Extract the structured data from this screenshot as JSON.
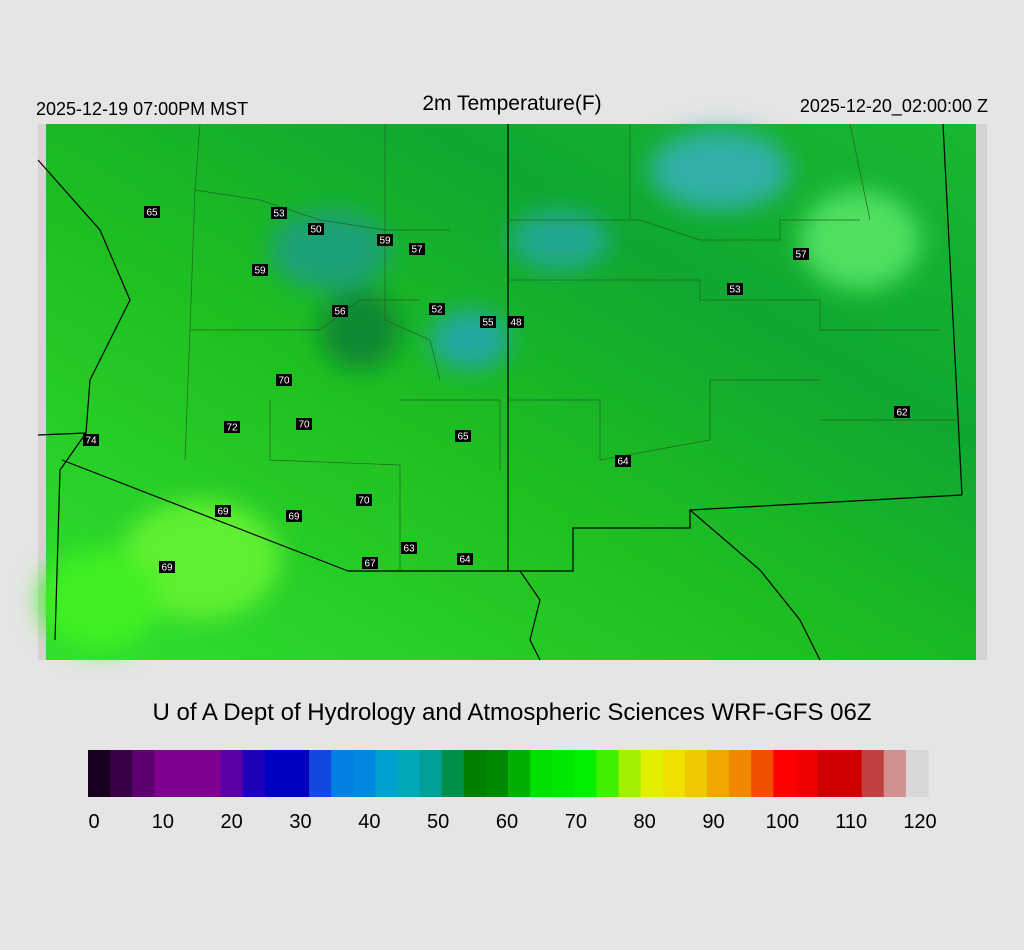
{
  "header": {
    "left": "2025-12-19 07:00PM MST",
    "title": "2m Temperature(F)",
    "right": "2025-12-20_02:00:00 Z"
  },
  "stations": [
    65,
    53,
    50,
    59,
    57,
    59,
    56,
    52,
    55,
    48,
    70,
    72,
    70,
    74,
    65,
    64,
    69,
    69,
    70,
    63,
    67,
    64,
    69,
    57,
    53,
    62
  ],
  "credit": "U of A Dept of Hydrology and Atmospheric Sciences WRF-GFS 06Z",
  "colorbar": {
    "range": [
      0,
      120
    ],
    "ticks": [
      0,
      10,
      20,
      30,
      40,
      50,
      60,
      70,
      80,
      90,
      100,
      110,
      120
    ],
    "colors": [
      "#1a0020",
      "#3a0045",
      "#600070",
      "#800090",
      "#800090",
      "#800090",
      "#5a00a8",
      "#2000b8",
      "#0000c0",
      "#0000c0",
      "#1048e0",
      "#0080e0",
      "#0088e0",
      "#00a0d0",
      "#00a8b8",
      "#00a098",
      "#00904a",
      "#008000",
      "#008800",
      "#00b000",
      "#00e000",
      "#00e800",
      "#00f000",
      "#40f000",
      "#a0f000",
      "#e0f000",
      "#f0e000",
      "#f0c800",
      "#f0a800",
      "#f08800",
      "#f05000",
      "#ff0000",
      "#f00000",
      "#d00000",
      "#d00000",
      "#c04040",
      "#d09090",
      "#d8d8d8"
    ]
  }
}
